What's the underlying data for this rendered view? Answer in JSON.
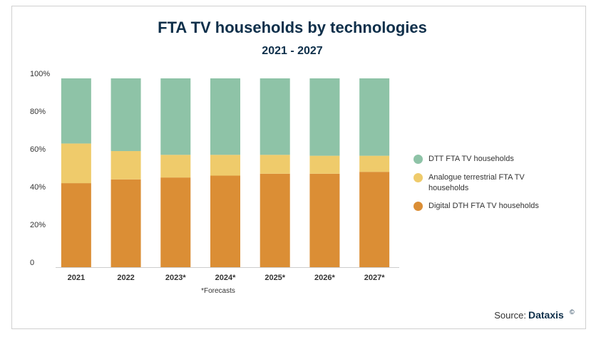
{
  "chart_data": {
    "type": "stacked_bar",
    "title": "FTA TV households by technologies",
    "subtitle": "2021 - 2027",
    "categories": [
      "2021",
      "2022",
      "2023*",
      "2024*",
      "2025*",
      "2026*",
      "2027*"
    ],
    "series": [
      {
        "name": "Digital DTH FTA TV households",
        "color": "#db8e35",
        "values": [
          44.5,
          46.5,
          47.5,
          48.5,
          49.5,
          49.5,
          50.5
        ]
      },
      {
        "name": "Analogue terrestrial FTA TV households",
        "color": "#efcb6b",
        "values": [
          21,
          15,
          12,
          11,
          10,
          9.5,
          8.5
        ]
      },
      {
        "name": "DTT FTA TV households",
        "color": "#8ec3a7",
        "values": [
          34.5,
          38.5,
          40.5,
          40.5,
          40.5,
          41,
          41
        ]
      }
    ],
    "ylim": [
      0,
      100
    ],
    "yticks": [
      0,
      {
        "value": 20,
        "label": "20%"
      },
      {
        "value": 40,
        "label": "40%"
      },
      {
        "value": 60,
        "label": "60%"
      },
      {
        "value": 80,
        "label": "80%"
      },
      {
        "value": 100,
        "label": "100%"
      }
    ],
    "annotation": "*Forecasts",
    "source": "Source:",
    "brand": "Dataxis",
    "copyright": "©"
  }
}
